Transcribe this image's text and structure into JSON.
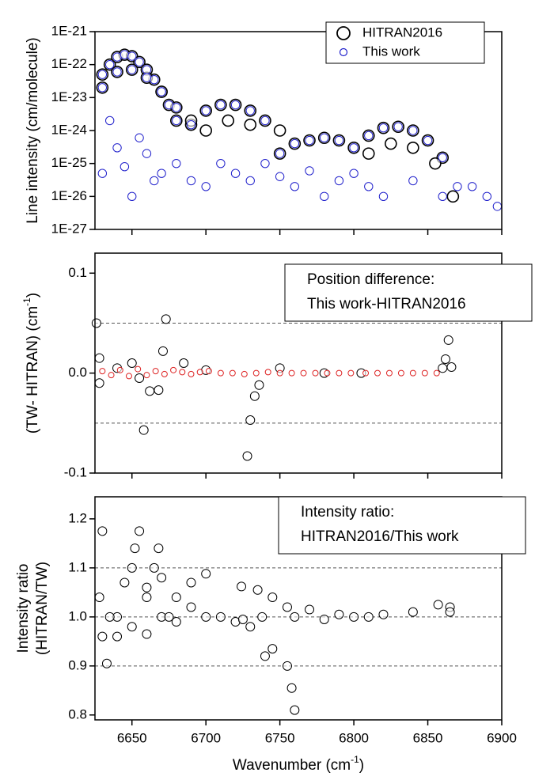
{
  "chart_data": [
    {
      "type": "scatter",
      "ylabel": "Line intensity (cm/molecule)",
      "ylog": true,
      "legend": "upper right",
      "xlim": [
        6625,
        6900
      ],
      "xticks": [
        6650,
        6700,
        6750,
        6800,
        6850,
        6900
      ],
      "ylim": [
        1e-27,
        1e-21
      ],
      "yticks": [
        {
          "value": 1e-21,
          "label": "1E-21"
        },
        {
          "value": 1e-22,
          "label": "1E-22"
        },
        {
          "value": 1e-23,
          "label": "1E-23"
        },
        {
          "value": 1e-24,
          "label": "1E-24"
        },
        {
          "value": 1e-25,
          "label": "1E-25"
        },
        {
          "value": 1e-26,
          "label": "1E-26"
        },
        {
          "value": 1e-27,
          "label": "1E-27"
        }
      ],
      "series": [
        {
          "name": "HITRAN2016",
          "color": "#000000",
          "x": [
            6630,
            6635,
            6640,
            6645,
            6650,
            6655,
            6660,
            6665,
            6670,
            6675,
            6680,
            6630,
            6640,
            6650,
            6660,
            6670,
            6680,
            6690,
            6690,
            6700,
            6710,
            6720,
            6730,
            6740,
            6750,
            6700,
            6715,
            6730,
            6750,
            6760,
            6770,
            6780,
            6790,
            6800,
            6810,
            6820,
            6830,
            6840,
            6850,
            6860,
            6867,
            6810,
            6825,
            6840,
            6855
          ],
          "values": [
            5e-23,
            1e-22,
            1.7e-22,
            2e-22,
            1.8e-22,
            1.2e-22,
            7e-23,
            3.5e-23,
            1.5e-23,
            6e-24,
            2e-24,
            2e-23,
            6e-23,
            7e-23,
            4e-23,
            1.5e-23,
            5e-24,
            1.5e-24,
            2e-24,
            4e-24,
            6e-24,
            6e-24,
            4e-24,
            2e-24,
            1e-24,
            1e-24,
            2e-24,
            1.5e-24,
            2e-25,
            4e-25,
            5e-25,
            6e-25,
            5e-25,
            3e-25,
            7e-25,
            1.2e-24,
            1.3e-24,
            1e-24,
            5e-25,
            1.5e-25,
            1e-26,
            2e-25,
            4e-25,
            3e-25,
            1e-25
          ]
        },
        {
          "name": "This work",
          "color": "#2222cc",
          "x": [
            6630,
            6635,
            6640,
            6645,
            6650,
            6655,
            6660,
            6665,
            6670,
            6675,
            6680,
            6630,
            6640,
            6650,
            6660,
            6670,
            6680,
            6690,
            6700,
            6710,
            6720,
            6730,
            6740,
            6750,
            6760,
            6770,
            6780,
            6790,
            6800,
            6810,
            6820,
            6830,
            6840,
            6850,
            6860,
            6630,
            6635,
            6640,
            6645,
            6650,
            6655,
            6660,
            6665,
            6670,
            6680,
            6690,
            6700,
            6710,
            6720,
            6730,
            6740,
            6750,
            6760,
            6770,
            6780,
            6790,
            6800,
            6810,
            6820,
            6840,
            6860,
            6870,
            6880,
            6890,
            6897
          ],
          "values": [
            5e-23,
            1e-22,
            1.7e-22,
            2e-22,
            1.8e-22,
            1.2e-22,
            7e-23,
            3.5e-23,
            1.5e-23,
            6e-24,
            2e-24,
            2e-23,
            6e-23,
            7e-23,
            4e-23,
            1.5e-23,
            5e-24,
            1.5e-24,
            4e-24,
            6e-24,
            6e-24,
            4e-24,
            2e-24,
            2e-25,
            4e-25,
            5e-25,
            6e-25,
            5e-25,
            3e-25,
            7e-25,
            1.2e-24,
            1.3e-24,
            1e-24,
            5e-25,
            1.5e-25,
            5e-26,
            2e-24,
            3e-25,
            8e-26,
            1e-26,
            6e-25,
            2e-25,
            3e-26,
            5e-26,
            1e-25,
            3e-26,
            2e-26,
            1e-25,
            5e-26,
            3e-26,
            1e-25,
            4e-26,
            2e-26,
            6e-26,
            1e-26,
            3e-26,
            5e-26,
            2e-26,
            1e-26,
            3e-26,
            1e-26,
            2e-26,
            2e-26,
            1e-26,
            5e-27
          ]
        }
      ]
    },
    {
      "type": "scatter",
      "ylabel": [
        "(TW- HITRAN) (cm",
        "-1",
        ")"
      ],
      "annotation": [
        "Position difference:",
        "This work-HITRAN2016"
      ],
      "xlim": [
        6625,
        6900
      ],
      "xticks": [
        6650,
        6700,
        6750,
        6800,
        6850,
        6900
      ],
      "ylim": [
        -0.1,
        0.12
      ],
      "yticks": [
        0.1,
        {
          "value": 0,
          "label": "0.0"
        },
        -0.1
      ],
      "hlines": [
        0.05,
        -0.05
      ],
      "series": [
        {
          "color": "#000000",
          "x": [
            6626,
            6628,
            6628,
            6640,
            6650,
            6655,
            6658,
            6662,
            6668,
            6671,
            6673,
            6685,
            6700,
            6728,
            6730,
            6733,
            6736,
            6750,
            6780,
            6805,
            6860,
            6862,
            6864,
            6866
          ],
          "values": [
            0.05,
            0.015,
            -0.01,
            0.005,
            0.01,
            -0.005,
            -0.057,
            -0.018,
            -0.017,
            0.022,
            0.054,
            0.01,
            0.003,
            -0.083,
            -0.047,
            -0.023,
            -0.012,
            0.005,
            0,
            0,
            0.005,
            0.014,
            0.033,
            0.006
          ]
        },
        {
          "color": "#dd2222",
          "x": [
            6630,
            6636,
            6642,
            6648,
            6654,
            6660,
            6666,
            6672,
            6678,
            6684,
            6690,
            6696,
            6702,
            6710,
            6718,
            6726,
            6734,
            6742,
            6750,
            6758,
            6766,
            6774,
            6782,
            6790,
            6798,
            6808,
            6816,
            6824,
            6832,
            6840,
            6848,
            6856
          ],
          "values": [
            0.002,
            -0.002,
            0.003,
            -0.003,
            0.004,
            -0.002,
            0.002,
            -0.001,
            0.003,
            0.001,
            -0.001,
            0.001,
            0.002,
            0,
            0,
            -0.001,
            0,
            0.001,
            0,
            0,
            0,
            0,
            0,
            0,
            0,
            0,
            0,
            0,
            0,
            0,
            0,
            0
          ]
        }
      ]
    },
    {
      "type": "scatter",
      "ylabel": [
        "Intensity ratio",
        "(HITRAN/TW)"
      ],
      "annotation": [
        "Intensity ratio:",
        "HITRAN2016/This work"
      ],
      "xlabel": [
        "Wavenumber (cm",
        "-1",
        ")"
      ],
      "xlim": [
        6625,
        6900
      ],
      "xticks": [
        6650,
        6700,
        6750,
        6800,
        6850,
        6900
      ],
      "ylim": [
        0.79,
        1.245
      ],
      "yticks": [
        1.2,
        1.1,
        {
          "value": 1,
          "label": "1.0"
        },
        0.9,
        0.8
      ],
      "hlines": [
        1.1,
        1,
        0.9
      ],
      "series": [
        {
          "color": "#000000",
          "x": [
            6628,
            6630,
            6633,
            6640,
            6645,
            6650,
            6652,
            6655,
            6660,
            6665,
            6668,
            6670,
            6680,
            6690,
            6700,
            6700,
            6710,
            6720,
            6724,
            6735,
            6745,
            6755,
            6770,
            6790,
            6800,
            6740,
            6745,
            6755,
            6758,
            6760,
            6730,
            6760,
            6780,
            6810,
            6820,
            6840,
            6857,
            6865,
            6865,
            6640,
            6660,
            6680,
            6650,
            6670,
            6725,
            6738,
            6630,
            6635,
            6660,
            6675,
            6690
          ],
          "values": [
            1.04,
            1.175,
            0.905,
            1,
            1.07,
            1.1,
            1.14,
            1.175,
            1.06,
            1.1,
            1.14,
            1.08,
            1.04,
            1.07,
            1.088,
            1,
            1,
            0.99,
            1.062,
            1.055,
            1.04,
            1.02,
            1.015,
            1.005,
            1,
            0.92,
            0.935,
            0.9,
            0.855,
            0.81,
            0.98,
            1,
            0.995,
            1,
            1.005,
            1.01,
            1.025,
            1.02,
            1.01,
            0.96,
            0.965,
            0.99,
            0.98,
            1,
            0.995,
            1,
            0.96,
            1,
            1.04,
            1,
            1.02
          ]
        }
      ]
    }
  ]
}
